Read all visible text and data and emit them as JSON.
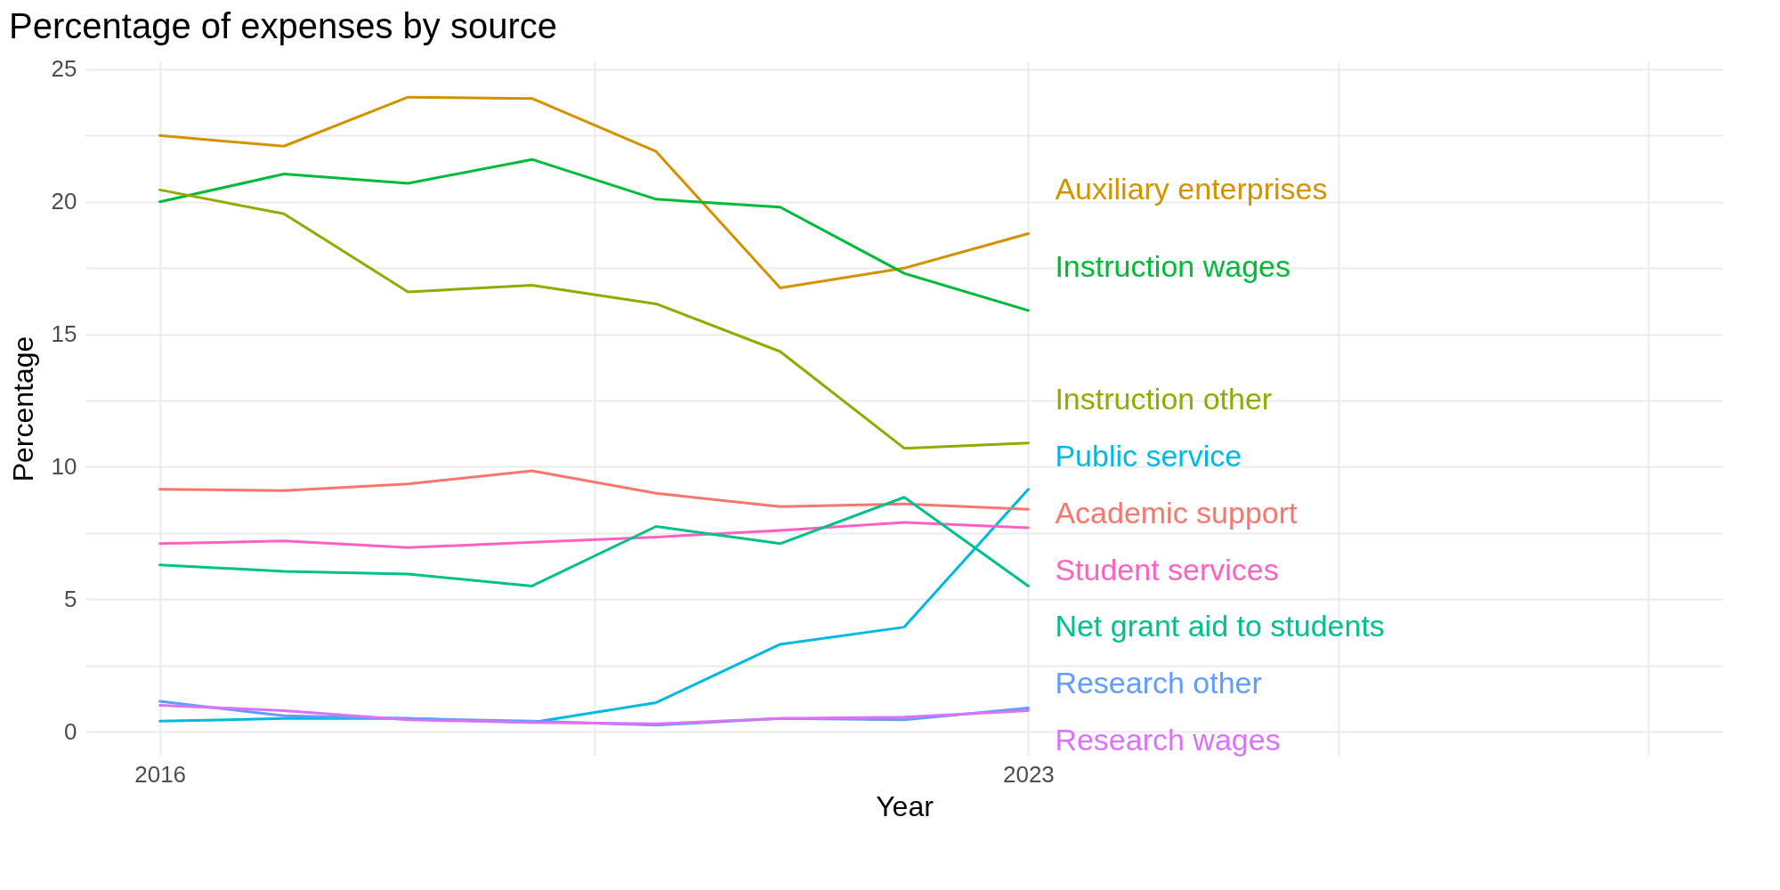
{
  "chart_data": {
    "type": "line",
    "title": "Percentage of expenses by source",
    "xlabel": "Year",
    "ylabel": "Percentage",
    "x": [
      2016,
      2017,
      2018,
      2019,
      2020,
      2021,
      2022,
      2023
    ],
    "series": [
      {
        "name": "Auxiliary enterprises",
        "color": "#d39200",
        "values": [
          22.5,
          22.1,
          23.95,
          23.9,
          21.9,
          16.75,
          17.5,
          18.8
        ]
      },
      {
        "name": "Instruction wages",
        "color": "#00ba38",
        "values": [
          20.0,
          21.05,
          20.7,
          21.6,
          20.1,
          19.8,
          17.3,
          15.9
        ]
      },
      {
        "name": "Instruction other",
        "color": "#93aa00",
        "values": [
          20.45,
          19.55,
          16.6,
          16.85,
          16.15,
          14.35,
          10.7,
          10.9
        ]
      },
      {
        "name": "Public service",
        "color": "#00b9e3",
        "values": [
          0.4,
          0.5,
          0.5,
          0.35,
          1.1,
          3.3,
          3.95,
          9.15
        ]
      },
      {
        "name": "Academic support",
        "color": "#f8766d",
        "values": [
          9.15,
          9.1,
          9.35,
          9.85,
          9.0,
          8.5,
          8.6,
          8.4
        ]
      },
      {
        "name": "Student services",
        "color": "#ff61c3",
        "values": [
          7.1,
          7.2,
          6.95,
          7.15,
          7.35,
          7.6,
          7.9,
          7.7
        ]
      },
      {
        "name": "Net grant aid to students",
        "color": "#00c08b",
        "values": [
          6.3,
          6.05,
          5.95,
          5.5,
          7.75,
          7.1,
          8.85,
          5.5
        ]
      },
      {
        "name": "Research other",
        "color": "#619cff",
        "values": [
          1.15,
          0.6,
          0.5,
          0.4,
          0.25,
          0.5,
          0.45,
          0.9
        ]
      },
      {
        "name": "Research wages",
        "color": "#db72fb",
        "values": [
          1.0,
          0.8,
          0.45,
          0.35,
          0.3,
          0.5,
          0.55,
          0.8
        ]
      }
    ],
    "xlim": [
      2015.4,
      2028.6
    ],
    "xticks": [
      2016,
      {
        "value": 2019.5,
        "label": null
      },
      2023,
      {
        "value": 2025.5,
        "label": null
      },
      {
        "value": 2028,
        "label": null
      }
    ],
    "ylim": [
      -0.9,
      25.3
    ],
    "yticks": [
      0,
      {
        "value": 2.5,
        "label": null
      },
      5,
      {
        "value": 7.5,
        "label": null
      },
      10,
      {
        "value": 12.5,
        "label": null
      },
      15,
      {
        "value": 17.5,
        "label": null
      },
      20,
      {
        "value": 22.5,
        "label": null
      },
      25
    ],
    "grid": true,
    "legend": false
  }
}
